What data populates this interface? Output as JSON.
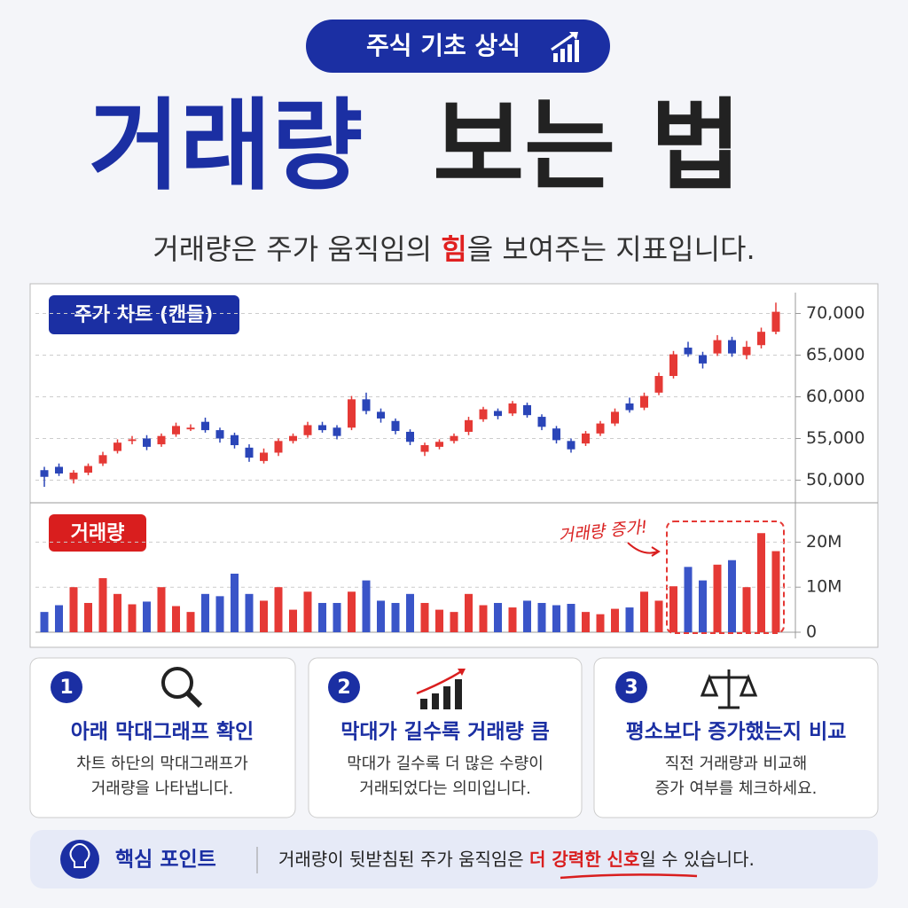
{
  "header": {
    "badge": "주식 기초 상식",
    "title_part1": "거래량",
    "title_part2": "보는 법",
    "subtitle": [
      "거래량은 주가 움직임의 ",
      "힘",
      "을 보여주는 지표입니다."
    ]
  },
  "chart_data": [
    {
      "type": "candlestick",
      "label": "주가 차트 (캔들)",
      "up_color": "#e53935",
      "down_color": "#2a45b8",
      "open": [
        51200,
        51600,
        50100,
        50900,
        52000,
        53500,
        54700,
        55000,
        54300,
        55500,
        56100,
        57000,
        56000,
        55400,
        53900,
        52300,
        53300,
        54700,
        55400,
        56600,
        56300,
        56300,
        59700,
        58200,
        57100,
        55800,
        53400,
        54000,
        54700,
        55800,
        57300,
        58300,
        58000,
        59000,
        57600,
        56200,
        54700,
        54400,
        55600,
        56800,
        59200,
        58700,
        60500,
        62500,
        65900,
        65000,
        65200,
        66800,
        65000,
        66200,
        67800
      ],
      "high": [
        51600,
        52000,
        51200,
        52000,
        53400,
        54900,
        55300,
        55400,
        55600,
        56900,
        56700,
        57500,
        56300,
        55700,
        54300,
        53800,
        55000,
        55600,
        57000,
        57000,
        56600,
        60100,
        60500,
        58600,
        57400,
        56100,
        54500,
        54900,
        55600,
        57600,
        58800,
        58600,
        59500,
        59300,
        57900,
        56500,
        55000,
        55900,
        57100,
        58600,
        59900,
        60500,
        62900,
        65500,
        66600,
        65400,
        67400,
        67200,
        66700,
        68300,
        71300
      ],
      "low": [
        49200,
        50500,
        49600,
        50600,
        51700,
        53200,
        54300,
        53600,
        54000,
        55200,
        55900,
        55700,
        54500,
        53800,
        52200,
        52000,
        52900,
        54400,
        55100,
        55700,
        54900,
        56000,
        57900,
        56900,
        55500,
        54200,
        52900,
        53700,
        54400,
        55400,
        57000,
        57300,
        57700,
        57500,
        56000,
        54400,
        53300,
        54100,
        55300,
        56500,
        58100,
        58400,
        60200,
        62200,
        64800,
        63400,
        64900,
        64800,
        64500,
        65800,
        67500
      ],
      "close": [
        50400,
        50800,
        50900,
        51700,
        53000,
        54500,
        54900,
        54000,
        55300,
        56500,
        56300,
        56000,
        55000,
        54200,
        52700,
        53300,
        54700,
        55300,
        56600,
        56000,
        55300,
        59700,
        58300,
        57400,
        55900,
        54600,
        54200,
        54600,
        55300,
        57200,
        58500,
        57700,
        59200,
        57800,
        56400,
        54800,
        53700,
        55600,
        56800,
        58200,
        58400,
        60100,
        62500,
        65100,
        65100,
        64000,
        66800,
        65200,
        66000,
        67800,
        70200
      ],
      "ylim": [
        47500,
        72500
      ],
      "yticks": [
        {
          "value": 50000,
          "label": "50,000"
        },
        {
          "value": 55000,
          "label": "55,000"
        },
        {
          "value": 60000,
          "label": "60,000"
        },
        {
          "value": 65000,
          "label": "65,000"
        },
        {
          "value": 70000,
          "label": "70,000"
        }
      ],
      "grid": true
    },
    {
      "type": "bar",
      "label": "거래량",
      "annotation": "거래량 증가!",
      "up_color": "#e53935",
      "down_color": "#3a55c8",
      "values": [
        4.5,
        6,
        10,
        6.5,
        12,
        8.5,
        6.2,
        6.8,
        10,
        5.8,
        4.5,
        8.5,
        8,
        13,
        8.5,
        7,
        10,
        5,
        9,
        6.5,
        6.5,
        9,
        11.5,
        7,
        6.5,
        8.5,
        6.5,
        5,
        4.5,
        8.5,
        6,
        6.5,
        5.5,
        7,
        6.5,
        6,
        6.3,
        4.5,
        4,
        5.2,
        5.5,
        9,
        7,
        10.2,
        14.5,
        11.5,
        15,
        16,
        10,
        22,
        18
      ],
      "ylim": [
        0,
        25
      ],
      "yticks": [
        0,
        {
          "value": 10,
          "label": "10M"
        },
        {
          "value": 20,
          "label": "20M"
        }
      ],
      "grid": true
    }
  ],
  "cards": [
    {
      "number": "1",
      "title": "아래 막대그래프 확인",
      "text": [
        "차트 하단의 막대그래프가",
        "거래량을 나타냅니다."
      ]
    },
    {
      "number": "2",
      "title": "막대가 길수록 거래량 큼",
      "text": [
        "막대가 길수록 더 많은 수량이",
        "거래되었다는 의미입니다."
      ]
    },
    {
      "number": "3",
      "title": "평소보다 증가했는지 비교",
      "text": [
        "직전 거래량과 비교해",
        "증가 여부를 체크하세요."
      ]
    }
  ],
  "footer": {
    "label": "핵심 포인트",
    "text": [
      "거래량이 뒷받침된 주가 움직임은 ",
      "더 강력한 신호",
      "일 수 있습니다."
    ]
  }
}
